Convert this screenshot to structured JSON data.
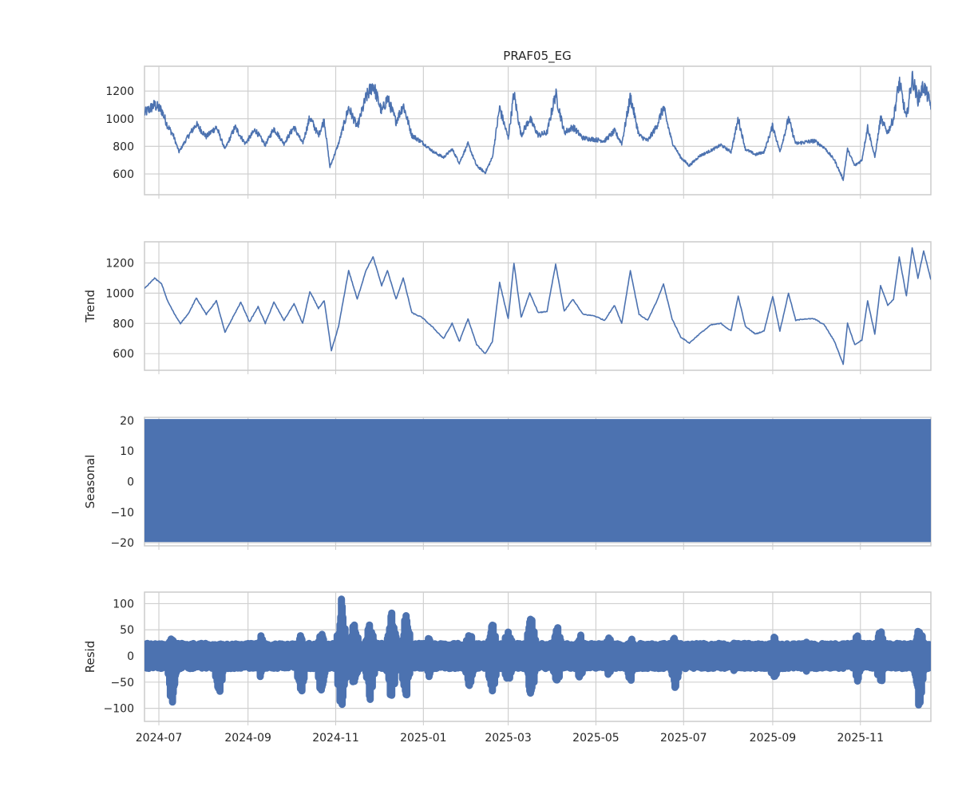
{
  "chart_data": {
    "type": "line",
    "title": "PRAF05_EG",
    "x_range": [
      "2024-06-21",
      "2025-12-20"
    ],
    "x_ticks": [
      "2024-07",
      "2024-09",
      "2024-11",
      "2025-01",
      "2025-03",
      "2025-05",
      "2025-07",
      "2025-09",
      "2025-11"
    ],
    "grid": true,
    "color": "#4c72b0",
    "panels": [
      {
        "name": "observed",
        "ylabel": "",
        "ylim": [
          450,
          1380
        ],
        "yticks": [
          600,
          800,
          1000,
          1200
        ],
        "style": "line",
        "anchors": [
          [
            "2024-06-21",
            1040
          ],
          [
            "2024-06-28",
            1100
          ],
          [
            "2024-07-03",
            1060
          ],
          [
            "2024-07-07",
            950
          ],
          [
            "2024-07-11",
            880
          ],
          [
            "2024-07-15",
            760
          ],
          [
            "2024-07-20",
            850
          ],
          [
            "2024-07-27",
            960
          ],
          [
            "2024-08-03",
            870
          ],
          [
            "2024-08-10",
            940
          ],
          [
            "2024-08-16",
            780
          ],
          [
            "2024-08-23",
            940
          ],
          [
            "2024-08-30",
            820
          ],
          [
            "2024-09-06",
            920
          ],
          [
            "2024-09-13",
            810
          ],
          [
            "2024-09-19",
            930
          ],
          [
            "2024-09-26",
            820
          ],
          [
            "2024-10-03",
            940
          ],
          [
            "2024-10-09",
            820
          ],
          [
            "2024-10-14",
            1010
          ],
          [
            "2024-10-20",
            880
          ],
          [
            "2024-10-24",
            990
          ],
          [
            "2024-10-28",
            650
          ],
          [
            "2024-11-03",
            820
          ],
          [
            "2024-11-10",
            1080
          ],
          [
            "2024-11-16",
            940
          ],
          [
            "2024-11-22",
            1150
          ],
          [
            "2024-11-27",
            1250
          ],
          [
            "2024-12-03",
            1050
          ],
          [
            "2024-12-07",
            1150
          ],
          [
            "2024-12-13",
            980
          ],
          [
            "2024-12-18",
            1100
          ],
          [
            "2024-12-24",
            880
          ],
          [
            "2024-12-31",
            830
          ],
          [
            "2025-01-08",
            760
          ],
          [
            "2025-01-15",
            720
          ],
          [
            "2025-01-21",
            780
          ],
          [
            "2025-01-26",
            680
          ],
          [
            "2025-02-01",
            820
          ],
          [
            "2025-02-07",
            660
          ],
          [
            "2025-02-13",
            610
          ],
          [
            "2025-02-18",
            720
          ],
          [
            "2025-02-23",
            1080
          ],
          [
            "2025-03-01",
            860
          ],
          [
            "2025-03-05",
            1180
          ],
          [
            "2025-03-10",
            880
          ],
          [
            "2025-03-16",
            1000
          ],
          [
            "2025-03-22",
            880
          ],
          [
            "2025-03-28",
            900
          ],
          [
            "2025-04-03",
            1180
          ],
          [
            "2025-04-09",
            900
          ],
          [
            "2025-04-15",
            940
          ],
          [
            "2025-04-22",
            860
          ],
          [
            "2025-04-30",
            850
          ],
          [
            "2025-05-07",
            840
          ],
          [
            "2025-05-14",
            910
          ],
          [
            "2025-05-19",
            820
          ],
          [
            "2025-05-25",
            1160
          ],
          [
            "2025-05-31",
            880
          ],
          [
            "2025-06-06",
            840
          ],
          [
            "2025-06-12",
            940
          ],
          [
            "2025-06-17",
            1080
          ],
          [
            "2025-06-23",
            830
          ],
          [
            "2025-06-29",
            720
          ],
          [
            "2025-07-05",
            660
          ],
          [
            "2025-07-12",
            730
          ],
          [
            "2025-07-20",
            770
          ],
          [
            "2025-07-27",
            810
          ],
          [
            "2025-08-03",
            760
          ],
          [
            "2025-08-08",
            1000
          ],
          [
            "2025-08-13",
            780
          ],
          [
            "2025-08-20",
            740
          ],
          [
            "2025-08-26",
            760
          ],
          [
            "2025-09-01",
            950
          ],
          [
            "2025-09-06",
            760
          ],
          [
            "2025-09-12",
            1000
          ],
          [
            "2025-09-17",
            820
          ],
          [
            "2025-09-23",
            830
          ],
          [
            "2025-09-30",
            840
          ],
          [
            "2025-10-07",
            790
          ],
          [
            "2025-10-14",
            700
          ],
          [
            "2025-10-20",
            560
          ],
          [
            "2025-10-23",
            780
          ],
          [
            "2025-10-28",
            660
          ],
          [
            "2025-11-02",
            700
          ],
          [
            "2025-11-06",
            940
          ],
          [
            "2025-11-11",
            720
          ],
          [
            "2025-11-15",
            1000
          ],
          [
            "2025-11-20",
            900
          ],
          [
            "2025-11-24",
            1000
          ],
          [
            "2025-11-28",
            1270
          ],
          [
            "2025-12-03",
            1000
          ],
          [
            "2025-12-07",
            1300
          ],
          [
            "2025-12-11",
            1140
          ],
          [
            "2025-12-15",
            1240
          ],
          [
            "2025-12-20",
            1100
          ]
        ]
      },
      {
        "name": "trend",
        "ylabel": "Trend",
        "ylim": [
          490,
          1340
        ],
        "yticks": [
          600,
          800,
          1000,
          1200
        ],
        "style": "line",
        "anchors": [
          [
            "2024-06-21",
            1030
          ],
          [
            "2024-06-28",
            1100
          ],
          [
            "2024-07-03",
            1060
          ],
          [
            "2024-07-07",
            950
          ],
          [
            "2024-07-12",
            860
          ],
          [
            "2024-07-16",
            800
          ],
          [
            "2024-07-22",
            870
          ],
          [
            "2024-07-27",
            970
          ],
          [
            "2024-08-03",
            860
          ],
          [
            "2024-08-10",
            950
          ],
          [
            "2024-08-16",
            740
          ],
          [
            "2024-08-22",
            850
          ],
          [
            "2024-08-27",
            940
          ],
          [
            "2024-09-02",
            810
          ],
          [
            "2024-09-08",
            910
          ],
          [
            "2024-09-13",
            800
          ],
          [
            "2024-09-19",
            940
          ],
          [
            "2024-09-26",
            820
          ],
          [
            "2024-10-03",
            930
          ],
          [
            "2024-10-09",
            800
          ],
          [
            "2024-10-14",
            1010
          ],
          [
            "2024-10-20",
            900
          ],
          [
            "2024-10-24",
            950
          ],
          [
            "2024-10-29",
            620
          ],
          [
            "2024-11-03",
            780
          ],
          [
            "2024-11-10",
            1150
          ],
          [
            "2024-11-16",
            960
          ],
          [
            "2024-11-22",
            1150
          ],
          [
            "2024-11-27",
            1240
          ],
          [
            "2024-12-03",
            1050
          ],
          [
            "2024-12-07",
            1150
          ],
          [
            "2024-12-13",
            960
          ],
          [
            "2024-12-18",
            1100
          ],
          [
            "2024-12-24",
            870
          ],
          [
            "2024-12-31",
            840
          ],
          [
            "2025-01-08",
            770
          ],
          [
            "2025-01-15",
            700
          ],
          [
            "2025-01-21",
            800
          ],
          [
            "2025-01-26",
            680
          ],
          [
            "2025-02-01",
            830
          ],
          [
            "2025-02-07",
            660
          ],
          [
            "2025-02-13",
            600
          ],
          [
            "2025-02-18",
            680
          ],
          [
            "2025-02-23",
            1070
          ],
          [
            "2025-03-01",
            830
          ],
          [
            "2025-03-05",
            1200
          ],
          [
            "2025-03-10",
            840
          ],
          [
            "2025-03-16",
            1000
          ],
          [
            "2025-03-22",
            870
          ],
          [
            "2025-03-28",
            880
          ],
          [
            "2025-04-03",
            1190
          ],
          [
            "2025-04-09",
            880
          ],
          [
            "2025-04-15",
            960
          ],
          [
            "2025-04-22",
            860
          ],
          [
            "2025-04-30",
            850
          ],
          [
            "2025-05-07",
            820
          ],
          [
            "2025-05-14",
            920
          ],
          [
            "2025-05-19",
            800
          ],
          [
            "2025-05-25",
            1150
          ],
          [
            "2025-05-31",
            860
          ],
          [
            "2025-06-06",
            820
          ],
          [
            "2025-06-12",
            940
          ],
          [
            "2025-06-17",
            1060
          ],
          [
            "2025-06-23",
            830
          ],
          [
            "2025-06-29",
            710
          ],
          [
            "2025-07-05",
            670
          ],
          [
            "2025-07-12",
            730
          ],
          [
            "2025-07-20",
            790
          ],
          [
            "2025-07-27",
            800
          ],
          [
            "2025-08-03",
            750
          ],
          [
            "2025-08-08",
            980
          ],
          [
            "2025-08-13",
            780
          ],
          [
            "2025-08-20",
            730
          ],
          [
            "2025-08-26",
            750
          ],
          [
            "2025-09-01",
            980
          ],
          [
            "2025-09-06",
            750
          ],
          [
            "2025-09-12",
            1000
          ],
          [
            "2025-09-17",
            820
          ],
          [
            "2025-09-23",
            830
          ],
          [
            "2025-09-30",
            830
          ],
          [
            "2025-10-07",
            790
          ],
          [
            "2025-10-14",
            680
          ],
          [
            "2025-10-20",
            530
          ],
          [
            "2025-10-23",
            800
          ],
          [
            "2025-10-28",
            660
          ],
          [
            "2025-11-02",
            690
          ],
          [
            "2025-11-06",
            950
          ],
          [
            "2025-11-11",
            730
          ],
          [
            "2025-11-15",
            1050
          ],
          [
            "2025-11-20",
            920
          ],
          [
            "2025-11-24",
            960
          ],
          [
            "2025-11-28",
            1240
          ],
          [
            "2025-12-03",
            980
          ],
          [
            "2025-12-07",
            1300
          ],
          [
            "2025-12-11",
            1100
          ],
          [
            "2025-12-15",
            1280
          ],
          [
            "2025-12-20",
            1090
          ]
        ]
      },
      {
        "name": "seasonal",
        "ylabel": "Seasonal",
        "ylim": [
          -21,
          21
        ],
        "yticks": [
          -20,
          -10,
          0,
          10,
          20
        ],
        "style": "band",
        "band": [
          -19.5,
          20.2
        ]
      },
      {
        "name": "resid",
        "ylabel": "Resid",
        "ylim": [
          -125,
          122
        ],
        "yticks": [
          -100,
          -50,
          0,
          50,
          100
        ],
        "style": "scatter",
        "base_amplitude": 24,
        "bursts": [
          [
            "2024-07-10",
            100,
            40
          ],
          [
            "2024-08-12",
            80,
            30
          ],
          [
            "2024-09-10",
            45,
            40
          ],
          [
            "2024-10-08",
            85,
            45
          ],
          [
            "2024-10-22",
            80,
            50
          ],
          [
            "2024-11-05",
            110,
            110
          ],
          [
            "2024-11-14",
            70,
            70
          ],
          [
            "2024-11-25",
            90,
            75
          ],
          [
            "2024-12-10",
            95,
            100
          ],
          [
            "2024-12-20",
            90,
            90
          ],
          [
            "2025-01-05",
            40,
            40
          ],
          [
            "2025-02-02",
            65,
            55
          ],
          [
            "2025-02-18",
            80,
            65
          ],
          [
            "2025-03-01",
            60,
            60
          ],
          [
            "2025-03-17",
            85,
            88
          ],
          [
            "2025-04-04",
            60,
            60
          ],
          [
            "2025-04-20",
            50,
            45
          ],
          [
            "2025-05-10",
            40,
            40
          ],
          [
            "2025-05-25",
            55,
            40
          ],
          [
            "2025-06-25",
            75,
            40
          ],
          [
            "2025-08-05",
            30,
            30
          ],
          [
            "2025-09-02",
            55,
            40
          ],
          [
            "2025-09-25",
            35,
            30
          ],
          [
            "2025-10-30",
            50,
            45
          ],
          [
            "2025-11-15",
            60,
            55
          ],
          [
            "2025-12-12",
            110,
            70
          ]
        ]
      }
    ]
  }
}
